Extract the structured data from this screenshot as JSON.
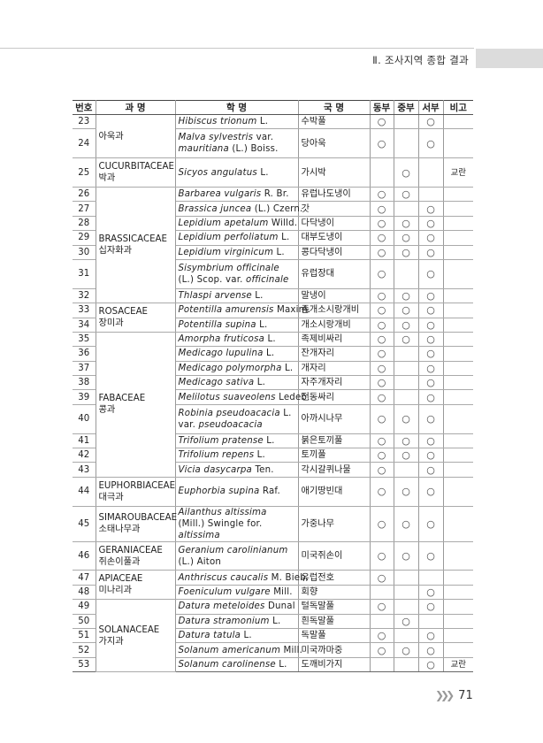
{
  "header": {
    "section_title": "Ⅱ. 조사지역 종합 결과"
  },
  "table": {
    "columns": [
      "번호",
      "과 명",
      "학 명",
      "국 명",
      "동부",
      "중부",
      "서부",
      "비고"
    ],
    "mark_symbol": "○",
    "families": [
      {
        "name_lines": [
          "아욱과"
        ],
        "rows": [
          {
            "no": "23",
            "sci": [
              [
                "Hibiscus trionum",
                true
              ],
              [
                " L.",
                false
              ]
            ],
            "kor": "수박풀",
            "east": true,
            "central": false,
            "west": true,
            "note": ""
          },
          {
            "no": "24",
            "sci": [
              [
                "Malva sylvestris",
                true
              ],
              [
                " var. ",
                false
              ],
              [
                "mauritiana",
                true
              ],
              [
                " (L.) Boiss.",
                false
              ]
            ],
            "kor": "당아욱",
            "east": true,
            "central": false,
            "west": true,
            "note": "",
            "double": true
          }
        ]
      },
      {
        "name_lines": [
          "CUCURBITACEAE",
          "박과"
        ],
        "rows": [
          {
            "no": "25",
            "sci": [
              [
                "Sicyos angulatus",
                true
              ],
              [
                " L.",
                false
              ]
            ],
            "kor": "가시박",
            "east": false,
            "central": true,
            "west": false,
            "note": "교란",
            "double": true
          }
        ]
      },
      {
        "name_lines": [
          "BRASSICACEAE",
          "십자화과"
        ],
        "rows": [
          {
            "no": "26",
            "sci": [
              [
                "Barbarea vulgaris",
                true
              ],
              [
                " R. Br.",
                false
              ]
            ],
            "kor": "유럽나도냉이",
            "east": true,
            "central": true,
            "west": false,
            "note": ""
          },
          {
            "no": "27",
            "sci": [
              [
                "Brassica juncea",
                true
              ],
              [
                " (L.) Czern.",
                false
              ]
            ],
            "kor": "갓",
            "east": true,
            "central": false,
            "west": true,
            "note": ""
          },
          {
            "no": "28",
            "sci": [
              [
                "Lepidium apetalum",
                true
              ],
              [
                " Willd.",
                false
              ]
            ],
            "kor": "다닥냉이",
            "east": true,
            "central": true,
            "west": true,
            "note": ""
          },
          {
            "no": "29",
            "sci": [
              [
                "Lepidium perfoliatum",
                true
              ],
              [
                " L.",
                false
              ]
            ],
            "kor": "대부도냉이",
            "east": true,
            "central": true,
            "west": true,
            "note": ""
          },
          {
            "no": "30",
            "sci": [
              [
                "Lepidium virginicum",
                true
              ],
              [
                " L.",
                false
              ]
            ],
            "kor": "콩다닥냉이",
            "east": true,
            "central": true,
            "west": true,
            "note": ""
          },
          {
            "no": "31",
            "sci": [
              [
                "Sisymbrium officinale",
                true
              ],
              [
                " (L.) Scop. var. ",
                false
              ],
              [
                "officinale",
                true
              ]
            ],
            "kor": "유럽장대",
            "east": true,
            "central": false,
            "west": true,
            "note": "",
            "double": true
          },
          {
            "no": "32",
            "sci": [
              [
                "Thlaspi arvense",
                true
              ],
              [
                " L.",
                false
              ]
            ],
            "kor": "말냉이",
            "east": true,
            "central": true,
            "west": true,
            "note": ""
          }
        ]
      },
      {
        "name_lines": [
          "ROSACEAE",
          "장미과"
        ],
        "rows": [
          {
            "no": "33",
            "sci": [
              [
                "Potentilla amurensis",
                true
              ],
              [
                " Maxim.",
                false
              ]
            ],
            "kor": "좀개소시랑개비",
            "east": true,
            "central": true,
            "west": true,
            "note": ""
          },
          {
            "no": "34",
            "sci": [
              [
                "Potentilla supina",
                true
              ],
              [
                " L.",
                false
              ]
            ],
            "kor": "개소시랑개비",
            "east": true,
            "central": true,
            "west": true,
            "note": ""
          }
        ]
      },
      {
        "name_lines": [
          "FABACEAE",
          "콩과"
        ],
        "rows": [
          {
            "no": "35",
            "sci": [
              [
                "Amorpha fruticosa",
                true
              ],
              [
                " L.",
                false
              ]
            ],
            "kor": "족제비싸리",
            "east": true,
            "central": true,
            "west": true,
            "note": ""
          },
          {
            "no": "36",
            "sci": [
              [
                "Medicago lupulina",
                true
              ],
              [
                " L.",
                false
              ]
            ],
            "kor": "잔개자리",
            "east": true,
            "central": false,
            "west": true,
            "note": ""
          },
          {
            "no": "37",
            "sci": [
              [
                "Medicago polymorpha",
                true
              ],
              [
                " L.",
                false
              ]
            ],
            "kor": "개자리",
            "east": true,
            "central": false,
            "west": true,
            "note": ""
          },
          {
            "no": "38",
            "sci": [
              [
                "Medicago sativa",
                true
              ],
              [
                " L.",
                false
              ]
            ],
            "kor": "자주개자리",
            "east": true,
            "central": false,
            "west": true,
            "note": ""
          },
          {
            "no": "39",
            "sci": [
              [
                "Melilotus suaveolens",
                true
              ],
              [
                " Ledeb.",
                false
              ]
            ],
            "kor": "전동싸리",
            "east": true,
            "central": false,
            "west": true,
            "note": ""
          },
          {
            "no": "40",
            "sci": [
              [
                "Robinia pseudoacacia",
                true
              ],
              [
                " L. var. ",
                false
              ],
              [
                "pseudoacacia",
                true
              ]
            ],
            "kor": "아까시나무",
            "east": true,
            "central": true,
            "west": true,
            "note": "",
            "double": true
          },
          {
            "no": "41",
            "sci": [
              [
                "Trifolium pratense",
                true
              ],
              [
                " L.",
                false
              ]
            ],
            "kor": "붉은토끼풀",
            "east": true,
            "central": true,
            "west": true,
            "note": ""
          },
          {
            "no": "42",
            "sci": [
              [
                "Trifolium repens",
                true
              ],
              [
                " L.",
                false
              ]
            ],
            "kor": "토끼풀",
            "east": true,
            "central": true,
            "west": true,
            "note": ""
          },
          {
            "no": "43",
            "sci": [
              [
                "Vicia dasycarpa",
                true
              ],
              [
                " Ten.",
                false
              ]
            ],
            "kor": "각시갈퀴나물",
            "east": true,
            "central": false,
            "west": true,
            "note": ""
          }
        ]
      },
      {
        "name_lines": [
          "EUPHORBIACEAE",
          "대극과"
        ],
        "rows": [
          {
            "no": "44",
            "sci": [
              [
                "Euphorbia supina",
                true
              ],
              [
                " Raf.",
                false
              ]
            ],
            "kor": "애기땅빈대",
            "east": true,
            "central": true,
            "west": true,
            "note": "",
            "double": true
          }
        ]
      },
      {
        "name_lines": [
          "SIMAROUBACEAE",
          "소태나무과"
        ],
        "rows": [
          {
            "no": "45",
            "sci": [
              [
                "Ailanthus altissima",
                true
              ],
              [
                " (Mill.) Swingle for. ",
                false
              ],
              [
                "altissima",
                true
              ]
            ],
            "kor": "가중나무",
            "east": true,
            "central": true,
            "west": true,
            "note": "",
            "double": true
          }
        ]
      },
      {
        "name_lines": [
          "GERANIACEAE",
          "쥐손이풀과"
        ],
        "rows": [
          {
            "no": "46",
            "sci": [
              [
                "Geranium carolinianum",
                true
              ],
              [
                " (L.) Aiton",
                false
              ]
            ],
            "kor": "미국쥐손이",
            "east": true,
            "central": true,
            "west": true,
            "note": "",
            "double": true
          }
        ]
      },
      {
        "name_lines": [
          "APIACEAE",
          "미나리과"
        ],
        "rows": [
          {
            "no": "47",
            "sci": [
              [
                "Anthriscus caucalis",
                true
              ],
              [
                " M. Bieb.",
                false
              ]
            ],
            "kor": "유럽전호",
            "east": true,
            "central": false,
            "west": false,
            "note": ""
          },
          {
            "no": "48",
            "sci": [
              [
                "Foeniculum vulgare",
                true
              ],
              [
                " Mill.",
                false
              ]
            ],
            "kor": "회향",
            "east": false,
            "central": false,
            "west": true,
            "note": ""
          }
        ]
      },
      {
        "name_lines": [
          "SOLANACEAE",
          "가지과"
        ],
        "rows": [
          {
            "no": "49",
            "sci": [
              [
                "Datura meteloides",
                true
              ],
              [
                " Dunal",
                false
              ]
            ],
            "kor": "털독말풀",
            "east": true,
            "central": false,
            "west": true,
            "note": ""
          },
          {
            "no": "50",
            "sci": [
              [
                "Datura stramonium",
                true
              ],
              [
                " L.",
                false
              ]
            ],
            "kor": "흰독말풀",
            "east": false,
            "central": true,
            "west": false,
            "note": ""
          },
          {
            "no": "51",
            "sci": [
              [
                "Datura tatula",
                true
              ],
              [
                " L.",
                false
              ]
            ],
            "kor": "독말풀",
            "east": true,
            "central": false,
            "west": true,
            "note": ""
          },
          {
            "no": "52",
            "sci": [
              [
                "Solanum americanum",
                true
              ],
              [
                " Mill.",
                false
              ]
            ],
            "kor": "미국까마중",
            "east": true,
            "central": true,
            "west": true,
            "note": ""
          },
          {
            "no": "53",
            "sci": [
              [
                "Solanum carolinense",
                true
              ],
              [
                " L.",
                false
              ]
            ],
            "kor": "도깨비가지",
            "east": false,
            "central": false,
            "west": true,
            "note": "교란"
          }
        ]
      }
    ]
  },
  "footer": {
    "page_number": "71",
    "chevron_icon": "triple-chevron-right"
  }
}
